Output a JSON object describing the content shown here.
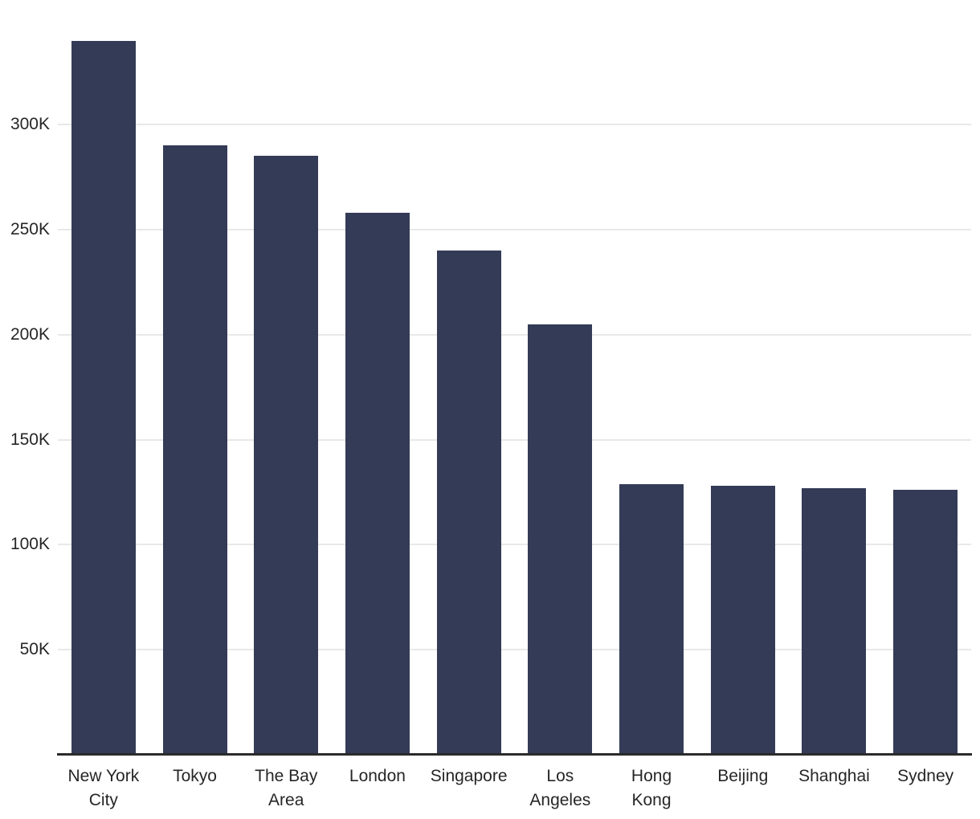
{
  "chart": {
    "title": "",
    "background_color": "#ffffff"
  },
  "chart_data": {
    "type": "bar",
    "title": "",
    "xlabel": "",
    "ylabel": "",
    "categories": [
      "New York City",
      "Tokyo",
      "The Bay Area",
      "London",
      "Singapore",
      "Los Angeles",
      "Hong Kong",
      "Beijing",
      "Shanghai",
      "Sydney"
    ],
    "x_tick_lines": [
      "New York\nCity",
      "Tokyo",
      "The Bay\nArea",
      "London",
      "Singapore",
      "Los\nAngeles",
      "Hong\nKong",
      "Beijing",
      "Shanghai",
      "Sydney"
    ],
    "values": [
      340000,
      290000,
      285000,
      258000,
      240000,
      205000,
      129000,
      128000,
      127000,
      126000
    ],
    "y_ticks": [
      {
        "value": 50000,
        "label": "50K"
      },
      {
        "value": 100000,
        "label": "100K"
      },
      {
        "value": 150000,
        "label": "150K"
      },
      {
        "value": 200000,
        "label": "200K"
      },
      {
        "value": 250000,
        "label": "250K"
      },
      {
        "value": 300000,
        "label": "300K"
      }
    ],
    "ylim": [
      0,
      350000
    ],
    "grid": "horizontal",
    "legend": "none",
    "bar_color": "#343B56",
    "gridline_color": "#E8E8E8",
    "axis_line_color": "#2B2B2B",
    "label_color": "#262626"
  }
}
